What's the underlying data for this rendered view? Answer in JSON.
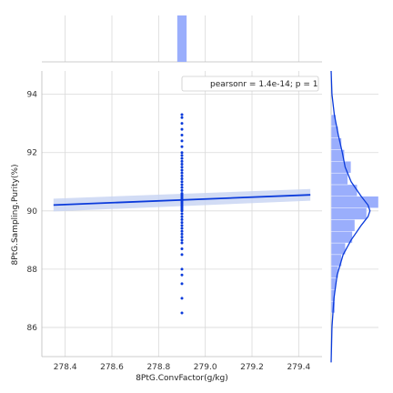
{
  "chart_data": {
    "type": "scatter",
    "title": "",
    "xlabel": "8PtG.ConvFactor(g/kg)",
    "ylabel": "8PtG.Sampling.Purity(%)",
    "xlim": [
      278.3,
      279.5
    ],
    "ylim": [
      85.0,
      94.8
    ],
    "xticks": [
      278.4,
      278.6,
      278.8,
      279.0,
      279.2,
      279.4
    ],
    "yticks": [
      86,
      88,
      90,
      92,
      94
    ],
    "grid": true,
    "legend": {
      "text": "pearsonr = 1.4e-14; p = 1",
      "position": "top-right"
    },
    "colors": {
      "points": "#0b3bdb",
      "line": "#0b3bdb",
      "band": "#c7d3f2",
      "hist": "#9aaefc",
      "kde": "#0b3bdb",
      "grid": "#d9d9d9"
    },
    "scatter": {
      "x": 278.9,
      "y": [
        86.5,
        87.0,
        87.5,
        87.8,
        88.0,
        88.5,
        88.7,
        88.9,
        89.0,
        89.1,
        89.2,
        89.3,
        89.4,
        89.5,
        89.6,
        89.7,
        89.8,
        89.9,
        90.0,
        90.05,
        90.1,
        90.15,
        90.2,
        90.25,
        90.3,
        90.35,
        90.4,
        90.45,
        90.5,
        90.55,
        90.6,
        90.7,
        90.8,
        90.9,
        91.0,
        91.1,
        91.2,
        91.3,
        91.4,
        91.5,
        91.6,
        91.7,
        91.8,
        91.9,
        92.0,
        92.2,
        92.4,
        92.6,
        92.8,
        93.0,
        93.2,
        93.3
      ]
    },
    "regression": {
      "x": [
        278.35,
        279.45
      ],
      "y": [
        90.2,
        90.55
      ],
      "band_halfwidth": [
        0.22,
        0.2
      ]
    },
    "marginal_x": {
      "bin_range": [
        278.88,
        278.92
      ],
      "count_fraction": 1.0
    },
    "marginal_y": {
      "bin_edges": [
        86.5,
        86.9,
        87.3,
        87.7,
        88.1,
        88.5,
        88.9,
        89.3,
        89.7,
        90.1,
        90.5,
        90.9,
        91.3,
        91.7,
        92.1,
        92.5,
        92.9,
        93.3
      ],
      "counts": [
        0.08,
        0.08,
        0.1,
        0.15,
        0.22,
        0.3,
        0.45,
        0.5,
        0.75,
        1.0,
        0.55,
        0.35,
        0.42,
        0.28,
        0.22,
        0.15,
        0.1
      ],
      "kde": {
        "y": [
          84.8,
          86.0,
          87.0,
          87.8,
          88.5,
          89.0,
          89.5,
          89.8,
          90.0,
          90.2,
          90.5,
          91.0,
          91.5,
          92.0,
          92.6,
          93.3,
          94.0,
          94.8
        ],
        "density": [
          0.0,
          0.02,
          0.07,
          0.15,
          0.3,
          0.5,
          0.75,
          0.92,
          0.97,
          0.92,
          0.75,
          0.5,
          0.35,
          0.28,
          0.18,
          0.08,
          0.02,
          0.0
        ]
      }
    }
  }
}
